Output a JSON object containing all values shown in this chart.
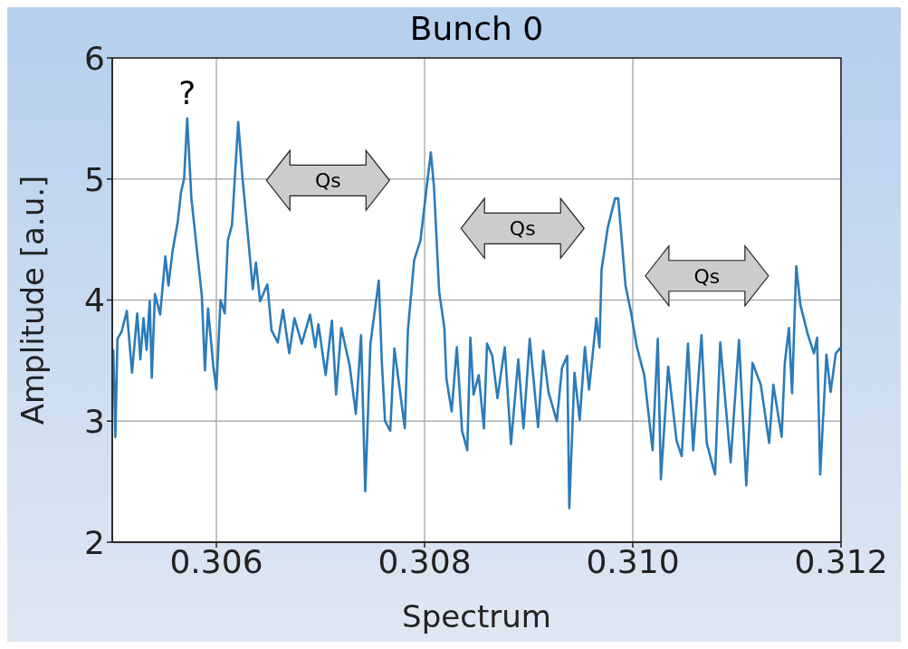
{
  "chart_data": {
    "type": "line",
    "title": "Bunch 0",
    "xlabel": "Spectrum",
    "ylabel": "Amplitude [a.u.]",
    "xlim": [
      0.305,
      0.312
    ],
    "xticks": [
      {
        "value": 0.306,
        "label": "0.306"
      },
      {
        "value": 0.308,
        "label": "0.308"
      },
      {
        "value": 0.31,
        "label": "0.310"
      },
      {
        "value": 0.312,
        "label": "0.312"
      }
    ],
    "ylim": [
      2,
      6
    ],
    "yticks": [
      2,
      3,
      4,
      5,
      6
    ],
    "grid": true,
    "marker": "none",
    "line_style": "solid",
    "annotations": [
      {
        "text": "?",
        "x": 0.30572,
        "y": 5.5
      },
      "Qs",
      "Qs",
      "Qs"
    ],
    "series": [
      {
        "color": "#2b7bb9",
        "x": [
          0.30501,
          0.30503,
          0.30505,
          0.30509,
          0.30514,
          0.30519,
          0.30524,
          0.30527,
          0.3053,
          0.30533,
          0.30536,
          0.30538,
          0.30541,
          0.30546,
          0.30551,
          0.30554,
          0.30558,
          0.30563,
          0.30566,
          0.30569,
          0.30572,
          0.30576,
          0.30582,
          0.30586,
          0.30589,
          0.30592,
          0.30597,
          0.306,
          0.30604,
          0.30608,
          0.30611,
          0.30615,
          0.30621,
          0.30625,
          0.30631,
          0.30635,
          0.30638,
          0.30642,
          0.30649,
          0.30653,
          0.30659,
          0.30664,
          0.3067,
          0.30675,
          0.30682,
          0.3069,
          0.30695,
          0.30698,
          0.30705,
          0.30711,
          0.30715,
          0.3072,
          0.30728,
          0.30734,
          0.30739,
          0.30743,
          0.30748,
          0.30756,
          0.30759,
          0.30762,
          0.30767,
          0.30771,
          0.30776,
          0.30781,
          0.30784,
          0.3079,
          0.30796,
          0.30801,
          0.30806,
          0.30809,
          0.30814,
          0.30819,
          0.30821,
          0.30826,
          0.30831,
          0.30836,
          0.30841,
          0.30844,
          0.30847,
          0.30852,
          0.30857,
          0.3086,
          0.30865,
          0.3087,
          0.30877,
          0.30883,
          0.3089,
          0.30895,
          0.30901,
          0.30909,
          0.30914,
          0.30919,
          0.30927,
          0.30932,
          0.30937,
          0.30939,
          0.30944,
          0.30949,
          0.30954,
          0.30958,
          0.30965,
          0.30968,
          0.3097,
          0.30976,
          0.30983,
          0.30986,
          0.30993,
          0.30998,
          0.31004,
          0.31011,
          0.31019,
          0.31024,
          0.31027,
          0.31034,
          0.31042,
          0.31047,
          0.31053,
          0.31058,
          0.31066,
          0.31071,
          0.31079,
          0.31084,
          0.31094,
          0.31102,
          0.31109,
          0.31115,
          0.31123,
          0.31131,
          0.31135,
          0.31143,
          0.31146,
          0.3115,
          0.31153,
          0.31157,
          0.31161,
          0.31168,
          0.31174,
          0.31177,
          0.3118,
          0.31186,
          0.3119,
          0.31195,
          0.312
        ],
        "values": [
          3.59,
          2.87,
          3.68,
          3.74,
          3.91,
          3.4,
          3.89,
          3.51,
          3.85,
          3.59,
          3.99,
          3.36,
          4.05,
          3.88,
          4.36,
          4.12,
          4.41,
          4.65,
          4.89,
          5.0,
          5.5,
          4.84,
          4.36,
          4.04,
          3.42,
          3.93,
          3.46,
          3.26,
          4.0,
          3.89,
          4.49,
          4.62,
          5.47,
          5.02,
          4.47,
          4.09,
          4.31,
          3.99,
          4.13,
          3.75,
          3.65,
          3.92,
          3.56,
          3.85,
          3.64,
          3.88,
          3.61,
          3.8,
          3.38,
          3.83,
          3.22,
          3.77,
          3.46,
          3.06,
          3.71,
          2.42,
          3.64,
          4.16,
          3.48,
          3.0,
          2.92,
          3.6,
          3.27,
          2.94,
          3.75,
          4.33,
          4.49,
          4.86,
          5.22,
          4.94,
          4.07,
          3.77,
          3.35,
          3.08,
          3.61,
          2.92,
          2.76,
          3.69,
          3.22,
          3.38,
          2.94,
          3.64,
          3.54,
          3.19,
          3.61,
          2.81,
          3.51,
          2.94,
          3.68,
          2.95,
          3.58,
          3.24,
          3.0,
          3.44,
          3.54,
          2.28,
          3.4,
          3.01,
          3.61,
          3.26,
          3.85,
          3.61,
          4.25,
          4.6,
          4.84,
          4.84,
          4.12,
          3.91,
          3.61,
          3.38,
          2.76,
          3.68,
          2.52,
          3.45,
          2.84,
          2.71,
          3.64,
          2.76,
          3.71,
          2.82,
          2.56,
          3.65,
          2.66,
          3.67,
          2.47,
          3.48,
          3.3,
          2.82,
          3.3,
          2.87,
          3.48,
          3.77,
          3.23,
          4.28,
          3.96,
          3.72,
          3.56,
          3.69,
          2.56,
          3.55,
          3.24,
          3.56,
          3.61
        ]
      }
    ]
  }
}
